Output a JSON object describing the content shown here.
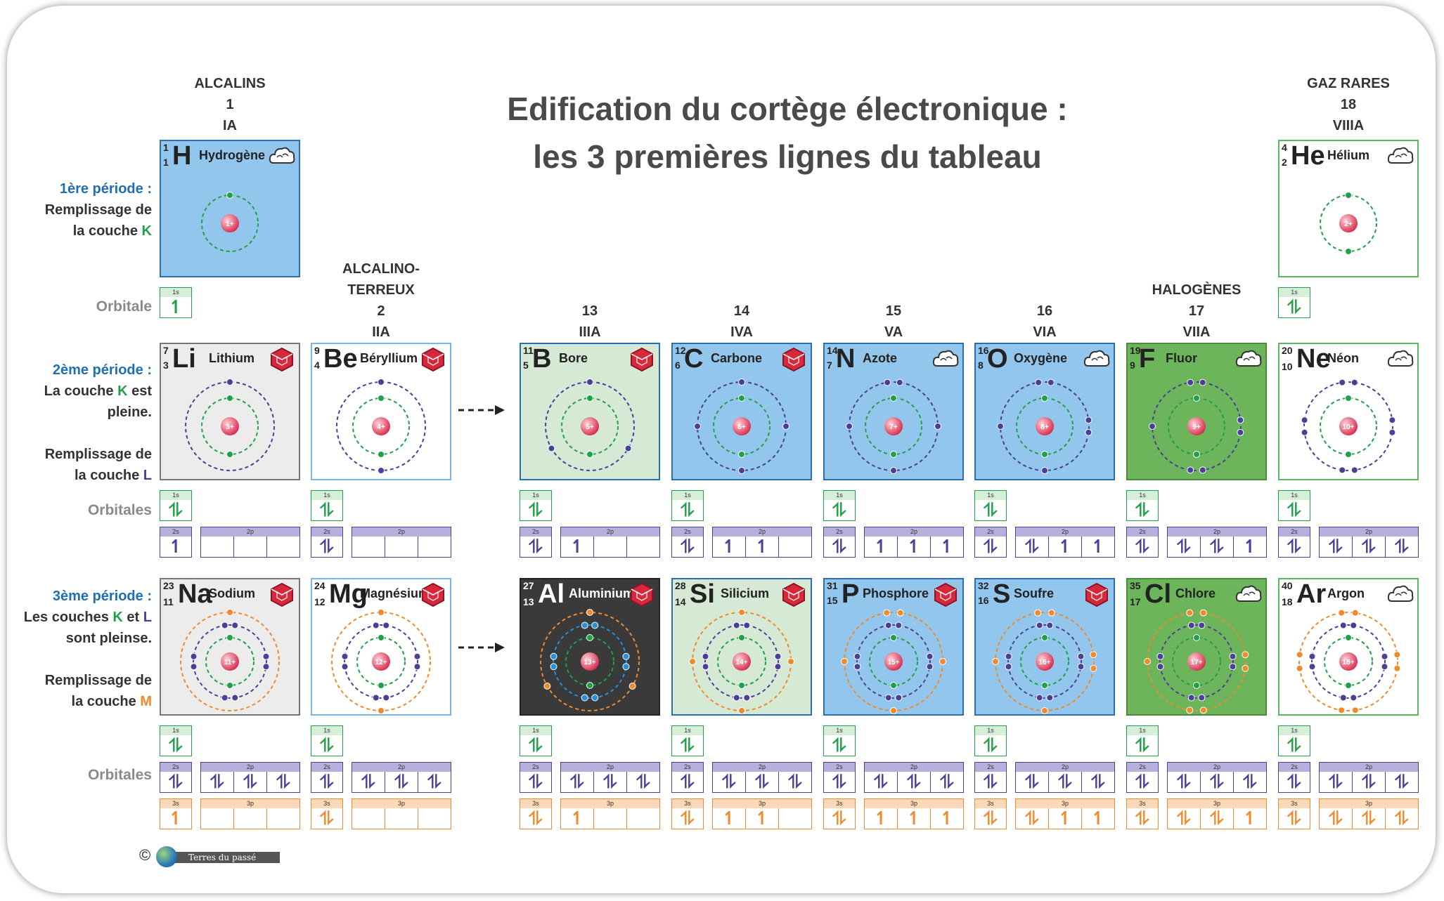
{
  "title_line1": "Edification du cortège électronique :",
  "title_line2": "les 3 premières lignes du tableau",
  "colors": {
    "green_k": "#21a04a",
    "violet_l": "#4b3f9a",
    "orange_m": "#f08a2c",
    "blue_al": "#2a8fd8",
    "alkali_bg": "#ececec",
    "metalloid_bg": "#d5e9d4",
    "nonmetal_bg": "#93c6ec",
    "halogen_bg": "#6db55a",
    "al_bg": "#3a3a3a"
  },
  "groups": [
    {
      "id": "g1",
      "line1": "ALCALINS",
      "line2": "1",
      "line3": "IA"
    },
    {
      "id": "g2",
      "line0": "ALCALINO-",
      "line1": "TERREUX",
      "line2": "2",
      "line3": "IIA"
    },
    {
      "id": "g13",
      "line2": "13",
      "line3": "IIIA"
    },
    {
      "id": "g14",
      "line2": "14",
      "line3": "IVA"
    },
    {
      "id": "g15",
      "line2": "15",
      "line3": "VA"
    },
    {
      "id": "g16",
      "line2": "16",
      "line3": "VIA"
    },
    {
      "id": "g17",
      "line1": "HALOGÈNES",
      "line2": "17",
      "line3": "VIIA"
    },
    {
      "id": "g18",
      "line1": "GAZ RARES",
      "line2": "18",
      "line3": "VIIIA"
    }
  ],
  "side": {
    "p1_title": "1ère période :",
    "p1_l1": "Remplissage de",
    "p1_l2a": "la couche ",
    "p1_l2b": "K",
    "orbitale": "Orbitale",
    "p2_title": "2ème période :",
    "p2_l1a": "La couche ",
    "p2_l1b": "K",
    "p2_l1c": " est pleine.",
    "p2_l2": "Remplissage de",
    "p2_l3a": "la couche ",
    "p2_l3b": "L",
    "orbitales": "Orbitales",
    "p3_title": "3ème période :",
    "p3_l1a": "Les couches ",
    "p3_l1b": "K",
    "p3_l1c": " et ",
    "p3_l1d": "L",
    "p3_l2": "sont pleinse.",
    "p3_l3": "Remplissage de",
    "p3_l4a": "la couche ",
    "p3_l4b": "M"
  },
  "orbital_labels": {
    "s1": "1s",
    "s2": "2s",
    "p2": "2p",
    "s3": "3s",
    "p3": "3p"
  },
  "elements": [
    {
      "sym": "H",
      "name": "Hydrogène",
      "Z": 1,
      "A": 1,
      "state": "gas",
      "charge": "1+",
      "shells": [
        1
      ],
      "orb": {
        "1s": "1"
      }
    },
    {
      "sym": "He",
      "name": "Hélium",
      "Z": 2,
      "A": 4,
      "state": "gas",
      "charge": "2+",
      "shells": [
        2
      ],
      "orb": {
        "1s": "2"
      }
    },
    {
      "sym": "Li",
      "name": "Lithium",
      "Z": 3,
      "A": 7,
      "state": "solid",
      "charge": "3+",
      "shells": [
        2,
        1
      ],
      "orb": {
        "1s": "2",
        "2s": "1",
        "2p": [
          0,
          0,
          0
        ]
      }
    },
    {
      "sym": "Be",
      "name": "Béryllium",
      "Z": 4,
      "A": 9,
      "state": "solid",
      "charge": "4+",
      "shells": [
        2,
        2
      ],
      "orb": {
        "1s": "2",
        "2s": "2",
        "2p": [
          0,
          0,
          0
        ]
      }
    },
    {
      "sym": "B",
      "name": "Bore",
      "Z": 5,
      "A": 11,
      "state": "solid",
      "charge": "5+",
      "shells": [
        2,
        3
      ],
      "orb": {
        "1s": "2",
        "2s": "2",
        "2p": [
          1,
          0,
          0
        ]
      }
    },
    {
      "sym": "C",
      "name": "Carbone",
      "Z": 6,
      "A": 12,
      "state": "solid",
      "charge": "6+",
      "shells": [
        2,
        4
      ],
      "orb": {
        "1s": "2",
        "2s": "2",
        "2p": [
          1,
          1,
          0
        ]
      }
    },
    {
      "sym": "N",
      "name": "Azote",
      "Z": 7,
      "A": 14,
      "state": "gas",
      "charge": "7+",
      "shells": [
        2,
        5
      ],
      "orb": {
        "1s": "2",
        "2s": "2",
        "2p": [
          1,
          1,
          1
        ]
      }
    },
    {
      "sym": "O",
      "name": "Oxygène",
      "Z": 8,
      "A": 16,
      "state": "gas",
      "charge": "8+",
      "shells": [
        2,
        6
      ],
      "orb": {
        "1s": "2",
        "2s": "2",
        "2p": [
          2,
          1,
          1
        ]
      }
    },
    {
      "sym": "F",
      "name": "Fluor",
      "Z": 9,
      "A": 19,
      "state": "gas",
      "charge": "9+",
      "shells": [
        2,
        7
      ],
      "orb": {
        "1s": "2",
        "2s": "2",
        "2p": [
          2,
          2,
          1
        ]
      }
    },
    {
      "sym": "Ne",
      "name": "Néon",
      "Z": 10,
      "A": 20,
      "state": "gas",
      "charge": "10+",
      "shells": [
        2,
        8
      ],
      "orb": {
        "1s": "2",
        "2s": "2",
        "2p": [
          2,
          2,
          2
        ]
      }
    },
    {
      "sym": "Na",
      "name": "Sodium",
      "Z": 11,
      "A": 23,
      "state": "solid",
      "charge": "11+",
      "shells": [
        2,
        8,
        1
      ],
      "orb": {
        "1s": "2",
        "2s": "2",
        "2p": [
          2,
          2,
          2
        ],
        "3s": "1",
        "3p": [
          0,
          0,
          0
        ]
      }
    },
    {
      "sym": "Mg",
      "name": "Magnésium",
      "Z": 12,
      "A": 24,
      "state": "solid",
      "charge": "12+",
      "shells": [
        2,
        8,
        2
      ],
      "orb": {
        "1s": "2",
        "2s": "2",
        "2p": [
          2,
          2,
          2
        ],
        "3s": "2",
        "3p": [
          0,
          0,
          0
        ]
      }
    },
    {
      "sym": "Al",
      "name": "Aluminium",
      "Z": 13,
      "A": 27,
      "state": "solid",
      "charge": "13+",
      "shells": [
        2,
        8,
        3
      ],
      "orb": {
        "1s": "2",
        "2s": "2",
        "2p": [
          2,
          2,
          2
        ],
        "3s": "2",
        "3p": [
          1,
          0,
          0
        ]
      }
    },
    {
      "sym": "Si",
      "name": "Silicium",
      "Z": 14,
      "A": 28,
      "state": "solid",
      "charge": "14+",
      "shells": [
        2,
        8,
        4
      ],
      "orb": {
        "1s": "2",
        "2s": "2",
        "2p": [
          2,
          2,
          2
        ],
        "3s": "2",
        "3p": [
          1,
          1,
          0
        ]
      }
    },
    {
      "sym": "P",
      "name": "Phosphore",
      "Z": 15,
      "A": 31,
      "state": "solid",
      "charge": "15+",
      "shells": [
        2,
        8,
        5
      ],
      "orb": {
        "1s": "2",
        "2s": "2",
        "2p": [
          2,
          2,
          2
        ],
        "3s": "2",
        "3p": [
          1,
          1,
          1
        ]
      }
    },
    {
      "sym": "S",
      "name": "Soufre",
      "Z": 16,
      "A": 32,
      "state": "solid",
      "charge": "16+",
      "shells": [
        2,
        8,
        6
      ],
      "orb": {
        "1s": "2",
        "2s": "2",
        "2p": [
          2,
          2,
          2
        ],
        "3s": "2",
        "3p": [
          2,
          1,
          1
        ]
      }
    },
    {
      "sym": "Cl",
      "name": "Chlore",
      "Z": 17,
      "A": 35,
      "state": "gas",
      "charge": "17+",
      "shells": [
        2,
        8,
        7
      ],
      "orb": {
        "1s": "2",
        "2s": "2",
        "2p": [
          2,
          2,
          2
        ],
        "3s": "2",
        "3p": [
          2,
          2,
          1
        ]
      }
    },
    {
      "sym": "Ar",
      "name": "Argon",
      "Z": 18,
      "A": 40,
      "state": "gas",
      "charge": "18+",
      "shells": [
        2,
        8,
        8
      ],
      "orb": {
        "1s": "2",
        "2s": "2",
        "2p": [
          2,
          2,
          2
        ],
        "3s": "2",
        "3p": [
          2,
          2,
          2
        ]
      }
    }
  ],
  "credit": {
    "symbol": "©",
    "text": "Terres du passé"
  }
}
